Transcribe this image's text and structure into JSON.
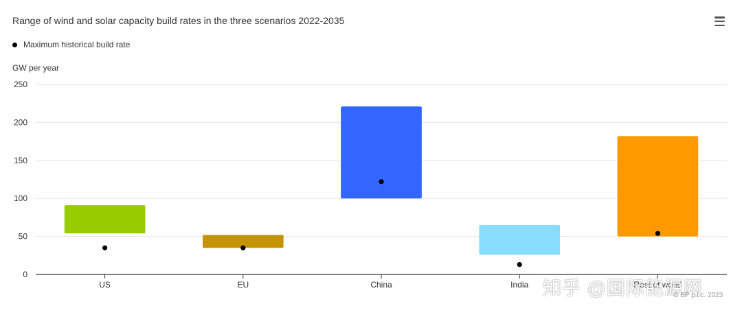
{
  "chart_data": {
    "type": "bar",
    "title": "Range of wind and solar capacity build rates in the three scenarios 2022-2035",
    "ylabel": "GW per year",
    "ylim": [
      0,
      250
    ],
    "yticks": [
      "0",
      "50",
      "100",
      "150",
      "200",
      "250"
    ],
    "grid": true,
    "legend_position": "top-left",
    "categories": [
      "US",
      "EU",
      "China",
      "India",
      "Rest of world"
    ],
    "series": [
      {
        "kind": "range",
        "low": [
          54,
          35,
          100,
          26,
          50
        ],
        "high": [
          91,
          52,
          221,
          65,
          182
        ],
        "colors": [
          "#99cc00",
          "#c59305",
          "#3366ff",
          "#88ddff",
          "#ff9900"
        ]
      },
      {
        "name": "Maximum historical build rate",
        "kind": "points",
        "values": [
          35,
          35,
          122,
          13,
          54
        ],
        "color": "#000000"
      }
    ]
  },
  "legend": {
    "label": "Maximum historical build rate"
  },
  "watermark": "知乎 @国际能源网",
  "credit": "© BP p.l.c. 2023",
  "colors": {
    "grid": "#e6e6e6",
    "axis": "#333333",
    "text": "#333333"
  },
  "icons": {
    "menu": "hamburger-menu-icon"
  }
}
